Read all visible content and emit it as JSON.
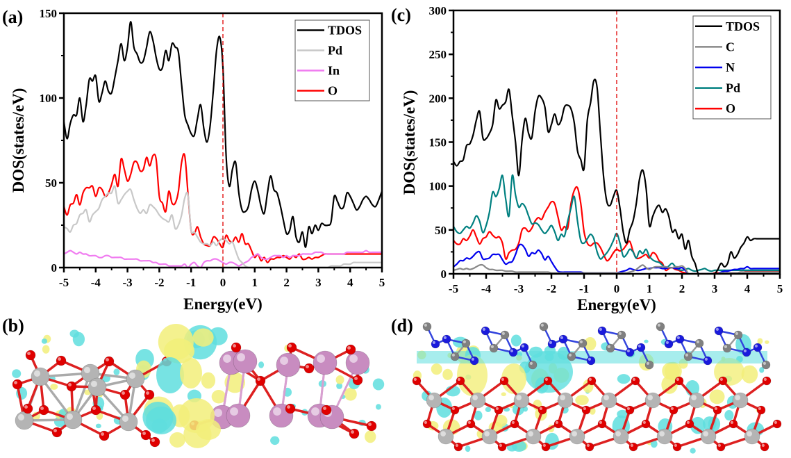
{
  "panels": {
    "a": {
      "label": "(a)"
    },
    "b": {
      "label": "(b)"
    },
    "c": {
      "label": "(c)"
    },
    "d": {
      "label": "(d)"
    }
  },
  "colors": {
    "tdos": "#000000",
    "pd_a": "#c8c8c8",
    "in": "#f07cf0",
    "o": "#ff0000",
    "c": "#888888",
    "n": "#0000ee",
    "pd_c": "#008080",
    "fermi": "#e00000",
    "iso_yellow": "#f2ef7a",
    "iso_cyan": "#5fdede",
    "atom_o": "#e00000",
    "atom_pd": "#b4b4b4",
    "atom_in": "#c88cc0",
    "atom_n": "#1a1adc",
    "atom_c": "#808080"
  },
  "chart_data": [
    {
      "type": "line",
      "panel": "(a)",
      "xlabel": "Energy(eV)",
      "ylabel": "DOS(states/eV)",
      "xlim": [
        -5,
        5
      ],
      "ylim": [
        0,
        150
      ],
      "xticks": [
        "-5",
        "-4",
        "-3",
        "-2",
        "-1",
        "0",
        "1",
        "2",
        "3",
        "4",
        "5"
      ],
      "yticks": [
        "0",
        "50",
        "100",
        "150"
      ],
      "fermi_level": 0,
      "legend": "top-right",
      "x": [
        -5,
        -4.9,
        -4.8,
        -4.7,
        -4.6,
        -4.5,
        -4.4,
        -4.3,
        -4.2,
        -4.1,
        -4.0,
        -3.9,
        -3.8,
        -3.7,
        -3.6,
        -3.5,
        -3.4,
        -3.3,
        -3.2,
        -3.1,
        -3.0,
        -2.9,
        -2.8,
        -2.7,
        -2.6,
        -2.5,
        -2.4,
        -2.3,
        -2.2,
        -2.1,
        -2.0,
        -1.9,
        -1.8,
        -1.7,
        -1.6,
        -1.5,
        -1.4,
        -1.3,
        -1.2,
        -1.1,
        -1.0,
        -0.9,
        -0.8,
        -0.7,
        -0.6,
        -0.5,
        -0.4,
        -0.3,
        -0.2,
        -0.1,
        0.0,
        0.1,
        0.2,
        0.3,
        0.4,
        0.5,
        0.6,
        0.7,
        0.8,
        0.9,
        1.0,
        1.1,
        1.2,
        1.3,
        1.4,
        1.5,
        1.6,
        1.7,
        1.8,
        1.9,
        2.0,
        2.1,
        2.2,
        2.3,
        2.4,
        2.5,
        2.6,
        2.7,
        2.8,
        2.9,
        3.0,
        3.1,
        3.2,
        3.3,
        3.4,
        3.5,
        3.6,
        3.7,
        3.8,
        3.9,
        4.0,
        4.1,
        4.2,
        4.3,
        4.4,
        4.5,
        4.6,
        4.7,
        4.8,
        4.9,
        5.0
      ],
      "series": [
        {
          "name": "TDOS",
          "color": "#000000",
          "values": [
            86,
            76,
            85,
            90,
            90,
            100,
            86,
            96,
            111,
            110,
            113,
            98,
            103,
            110,
            104,
            103,
            112,
            122,
            132,
            122,
            130,
            145,
            130,
            126,
            121,
            122,
            130,
            139,
            134,
            124,
            117,
            118,
            128,
            122,
            132,
            130,
            127,
            108,
            90,
            84,
            79,
            78,
            88,
            96,
            82,
            74,
            84,
            105,
            128,
            136,
            118,
            66,
            48,
            58,
            62,
            44,
            34,
            33,
            36,
            46,
            51,
            45,
            36,
            32,
            44,
            54,
            46,
            44,
            37,
            28,
            20,
            22,
            30,
            18,
            15,
            21,
            12,
            24,
            20,
            25,
            22,
            26,
            25,
            25,
            27,
            42,
            39,
            35,
            36,
            44,
            42,
            38,
            34,
            36,
            40,
            42,
            40,
            37,
            36,
            40,
            45
          ],
          "note": "curve sampled on x grid"
        },
        {
          "name": "Pd",
          "color": "#c8c8c8",
          "values": [
            24,
            23,
            21,
            25,
            26,
            31,
            32,
            34,
            27,
            31,
            33,
            35,
            40,
            42,
            44,
            44,
            48,
            38,
            40,
            43,
            45,
            46,
            40,
            35,
            32,
            34,
            32,
            37,
            36,
            34,
            31,
            29,
            28,
            27,
            31,
            23,
            25,
            31,
            41,
            43,
            22,
            21,
            18,
            15,
            14,
            14,
            13,
            15,
            13,
            16,
            17,
            16,
            14,
            15,
            10,
            5,
            3,
            1,
            0,
            0,
            0,
            0,
            0,
            0,
            0,
            0,
            0,
            0,
            0,
            0,
            0,
            0,
            0,
            0,
            0,
            0,
            0,
            0,
            0,
            0,
            0,
            0,
            0,
            0,
            1,
            1,
            1,
            1,
            2,
            2,
            2,
            3,
            3,
            3,
            3,
            3,
            3,
            3,
            3,
            3,
            3
          ]
        },
        {
          "name": "In",
          "color": "#f07cf0",
          "values": [
            8,
            9,
            10,
            9,
            8,
            9,
            8,
            8,
            7,
            7,
            7,
            6,
            6,
            7,
            7,
            6,
            6,
            6,
            6,
            5,
            5,
            5,
            5,
            5,
            4,
            4,
            4,
            4,
            3,
            3,
            2,
            2,
            2,
            1,
            1,
            1,
            1,
            1,
            2,
            0,
            2,
            3,
            1,
            0,
            3,
            4,
            4,
            5,
            5,
            4,
            3,
            2,
            3,
            3,
            2,
            1,
            2,
            3,
            4,
            6,
            7,
            8,
            6,
            5,
            5,
            6,
            7,
            7,
            7,
            6,
            7,
            6,
            7,
            7,
            7,
            8,
            8,
            8,
            8,
            9,
            9,
            9,
            8,
            8,
            8,
            8,
            8,
            8,
            8,
            9,
            9,
            9,
            9,
            9,
            9,
            10,
            9,
            9,
            9,
            9,
            9
          ],
          "note": "In curve approximated"
        },
        {
          "name": "O",
          "color": "#ff0000",
          "values": [
            36,
            31,
            37,
            38,
            43,
            37,
            44,
            47,
            47,
            48,
            42,
            47,
            46,
            42,
            44,
            49,
            55,
            48,
            64,
            58,
            51,
            55,
            62,
            62,
            57,
            58,
            65,
            60,
            66,
            64,
            42,
            38,
            33,
            45,
            38,
            38,
            45,
            62,
            66,
            44,
            22,
            20,
            24,
            18,
            14,
            13,
            13,
            18,
            17,
            14,
            12,
            19,
            16,
            15,
            18,
            15,
            20,
            14,
            14,
            10,
            6,
            8,
            4,
            6,
            3,
            5,
            5,
            6,
            6,
            7,
            6,
            5,
            7,
            6,
            8,
            5,
            5,
            6,
            5,
            6,
            6,
            7,
            8,
            8,
            8,
            8,
            8,
            8,
            8,
            8,
            8,
            8,
            8,
            8,
            8,
            8,
            8,
            8,
            8,
            8,
            8
          ]
        }
      ]
    },
    {
      "type": "line",
      "panel": "(c)",
      "xlabel": "Energy(eV)",
      "ylabel": "DOS(states/eV)",
      "xlim": [
        -5,
        5
      ],
      "ylim": [
        0,
        300
      ],
      "xticks": [
        "-5",
        "-4",
        "-3",
        "-2",
        "-1",
        "0",
        "1",
        "2",
        "3",
        "4",
        "5"
      ],
      "yticks": [
        "0",
        "50",
        "100",
        "150",
        "200",
        "250",
        "300"
      ],
      "fermi_level": 0,
      "legend": "top-right",
      "x": [
        -5,
        -4.9,
        -4.8,
        -4.7,
        -4.6,
        -4.5,
        -4.4,
        -4.3,
        -4.2,
        -4.1,
        -4.0,
        -3.9,
        -3.8,
        -3.7,
        -3.6,
        -3.5,
        -3.4,
        -3.3,
        -3.2,
        -3.1,
        -3.0,
        -2.9,
        -2.8,
        -2.7,
        -2.6,
        -2.5,
        -2.4,
        -2.3,
        -2.2,
        -2.1,
        -2.0,
        -1.9,
        -1.8,
        -1.7,
        -1.6,
        -1.5,
        -1.4,
        -1.3,
        -1.2,
        -1.1,
        -1.0,
        -0.9,
        -0.8,
        -0.7,
        -0.6,
        -0.5,
        -0.4,
        -0.3,
        -0.2,
        -0.1,
        0.0,
        0.1,
        0.2,
        0.3,
        0.4,
        0.5,
        0.6,
        0.7,
        0.8,
        0.9,
        1.0,
        1.1,
        1.2,
        1.3,
        1.4,
        1.5,
        1.6,
        1.7,
        1.8,
        1.9,
        2.0,
        2.1,
        2.2,
        2.3,
        2.4,
        2.5,
        2.6,
        2.7,
        2.8,
        2.9,
        3.0,
        3.1,
        3.2,
        3.3,
        3.4,
        3.5,
        3.6,
        3.7,
        3.8,
        3.9,
        4.0,
        4.1,
        4.2,
        4.3,
        4.4,
        4.5,
        4.6,
        4.7,
        4.8,
        4.9,
        5.0
      ],
      "series": [
        {
          "name": "TDOS",
          "color": "#000000",
          "values": [
            128,
            123,
            128,
            130,
            146,
            148,
            158,
            175,
            185,
            155,
            154,
            160,
            170,
            198,
            188,
            192,
            196,
            210,
            180,
            150,
            112,
            152,
            177,
            160,
            155,
            185,
            202,
            200,
            190,
            162,
            170,
            182,
            170,
            175,
            190,
            192,
            188,
            172,
            140,
            130,
            120,
            175,
            195,
            220,
            212,
            160,
            110,
            82,
            78,
            88,
            95,
            75,
            48,
            35,
            50,
            60,
            80,
            108,
            118,
            98,
            55,
            65,
            74,
            78,
            70,
            74,
            65,
            48,
            50,
            40,
            45,
            28,
            38,
            20,
            12,
            0,
            0,
            0,
            0,
            0,
            0,
            5,
            12,
            8,
            12,
            25,
            18,
            22,
            30,
            35,
            42,
            38,
            40,
            40,
            40,
            40,
            40,
            40,
            40,
            40,
            40
          ],
          "note": "curve sampled on x grid"
        },
        {
          "name": "C",
          "color": "#888888",
          "values": [
            4,
            5,
            6,
            5,
            6,
            5,
            6,
            8,
            10,
            10,
            7,
            5,
            5,
            4,
            4,
            4,
            3,
            3,
            3,
            2,
            2,
            2,
            2,
            2,
            2,
            2,
            2,
            2,
            2,
            2,
            1,
            1,
            1,
            1,
            1,
            1,
            1,
            1,
            1,
            1,
            1,
            1,
            1,
            1,
            1,
            1,
            1,
            1,
            1,
            1,
            1,
            1,
            1,
            1,
            2,
            3,
            5,
            8,
            10,
            7,
            5,
            7,
            8,
            8,
            8,
            8,
            7,
            7,
            8,
            8,
            9,
            6,
            0,
            0,
            0,
            0,
            0,
            0,
            0,
            0,
            0,
            0,
            1,
            1,
            1,
            1,
            1,
            1,
            2,
            2,
            2,
            2,
            2,
            2,
            2,
            2,
            2,
            2,
            2,
            2,
            2
          ]
        },
        {
          "name": "N",
          "color": "#0000ee",
          "values": [
            8,
            11,
            15,
            15,
            18,
            17,
            20,
            24,
            25,
            17,
            17,
            18,
            22,
            22,
            22,
            16,
            11,
            13,
            14,
            22,
            32,
            33,
            28,
            20,
            24,
            23,
            27,
            23,
            16,
            20,
            14,
            8,
            3,
            2,
            2,
            2,
            2,
            2,
            2,
            2,
            1,
            1,
            1,
            1,
            1,
            1,
            1,
            1,
            1,
            1,
            1,
            2,
            3,
            4,
            6,
            5,
            4,
            4,
            5,
            6,
            6,
            7,
            7,
            7,
            6,
            6,
            7,
            7,
            6,
            6,
            7,
            4,
            0,
            0,
            0,
            0,
            0,
            0,
            0,
            0,
            0,
            0,
            2,
            3,
            3,
            4,
            5,
            5,
            6,
            6,
            8,
            6,
            6,
            6,
            6,
            6,
            6,
            6,
            6,
            6,
            6
          ]
        },
        {
          "name": "Pd",
          "color": "#008080",
          "values": [
            54,
            48,
            46,
            50,
            54,
            52,
            58,
            66,
            60,
            47,
            55,
            70,
            93,
            88,
            97,
            112,
            85,
            66,
            112,
            90,
            76,
            80,
            76,
            66,
            57,
            58,
            56,
            50,
            46,
            50,
            55,
            48,
            38,
            45,
            43,
            60,
            75,
            88,
            60,
            38,
            35,
            40,
            45,
            40,
            25,
            17,
            20,
            24,
            30,
            38,
            46,
            35,
            20,
            22,
            28,
            25,
            18,
            26,
            23,
            28,
            20,
            16,
            14,
            13,
            10,
            6,
            9,
            12,
            8,
            5,
            4,
            5,
            6,
            4,
            3,
            4,
            5,
            6,
            4,
            3,
            4,
            4,
            4,
            4,
            4,
            4,
            4,
            4,
            4,
            4,
            4,
            4,
            4,
            4,
            4,
            4,
            4,
            4,
            4,
            4,
            4
          ],
          "note": "Pd curve approximated"
        },
        {
          "name": "O",
          "color": "#ff0000",
          "values": [
            38,
            34,
            34,
            40,
            38,
            43,
            50,
            42,
            34,
            40,
            42,
            48,
            44,
            41,
            42,
            35,
            17,
            24,
            27,
            28,
            35,
            50,
            52,
            48,
            52,
            60,
            64,
            62,
            70,
            76,
            82,
            80,
            65,
            50,
            54,
            52,
            80,
            95,
            98,
            80,
            48,
            35,
            32,
            35,
            35,
            30,
            22,
            15,
            18,
            24,
            28,
            26,
            28,
            33,
            37,
            26,
            18,
            18,
            20,
            22,
            18,
            24,
            22,
            15,
            12,
            4,
            6,
            7,
            5,
            4,
            2,
            1,
            0,
            0,
            0,
            0,
            0,
            0,
            0,
            0,
            1,
            1,
            1,
            1,
            1,
            1,
            1,
            1,
            2,
            2,
            3,
            3,
            3,
            3,
            3,
            3,
            3,
            3,
            3,
            3,
            3
          ]
        }
      ]
    }
  ],
  "structures": {
    "b": {
      "description_label": "(b)"
    },
    "d": {
      "description_label": "(d)"
    }
  }
}
